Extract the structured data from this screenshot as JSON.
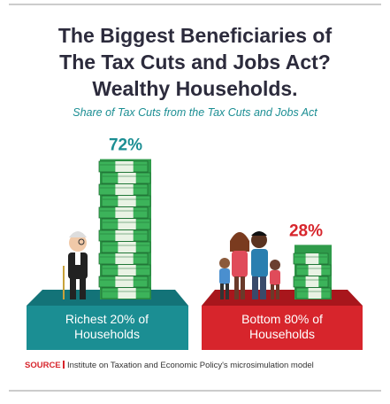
{
  "chart_data": {
    "type": "pictogram",
    "title": [
      "The Biggest Beneficiaries of",
      "The Tax Cuts and Jobs Act?",
      "Wealthy Households."
    ],
    "subtitle": "Share of Tax Cuts from the Tax Cuts and Jobs Act",
    "categories": [
      "Richest 20% of Households",
      "Bottom 80% of Households"
    ],
    "values": [
      72,
      28
    ],
    "value_labels": [
      "72%",
      "28%"
    ],
    "colors": [
      "#1b8e93",
      "#d7252c"
    ],
    "source_label": "SOURCE",
    "source": "Institute on Taxation and Economic Policy's microsimulation model"
  }
}
